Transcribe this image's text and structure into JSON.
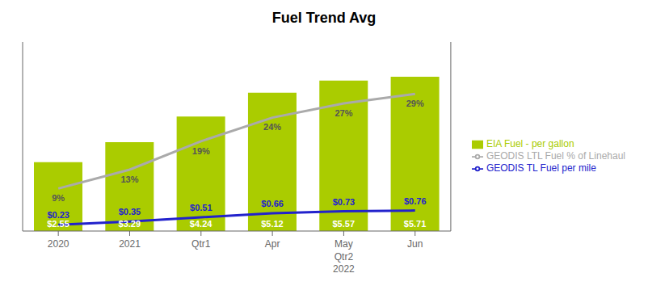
{
  "chart_data": {
    "type": "bar",
    "title": "Fuel Trend Avg",
    "categories": [
      "2020",
      "2021",
      "Qtr1",
      "Apr",
      "May",
      "Jun"
    ],
    "series": [
      {
        "name": "EIA Fuel - per gallon",
        "type": "bar",
        "color": "#aacc00",
        "values": [
          2.55,
          3.29,
          4.24,
          5.12,
          5.57,
          5.71
        ],
        "value_labels": [
          "$2.55",
          "$3.29",
          "$4.24",
          "$5.12",
          "$5.57",
          "$5.71"
        ]
      },
      {
        "name": "GEODIS TL Fuel per mile",
        "type": "line",
        "color": "#2222cc",
        "values": [
          0.23,
          0.35,
          0.51,
          0.66,
          0.73,
          0.76
        ],
        "value_labels": [
          "$0.23",
          "$0.35",
          "$0.51",
          "$0.66",
          "$0.73",
          "$0.76"
        ]
      },
      {
        "name": "GEODIS LTL Fuel % of Linehaul",
        "type": "line",
        "color": "#aaaaaa",
        "axis": "y2",
        "values": [
          9,
          13,
          19,
          24,
          27,
          29
        ],
        "value_labels": [
          "9%",
          "13%",
          "19%",
          "24%",
          "27%",
          "29%"
        ]
      }
    ],
    "annotations": [
      {
        "text": "Qtr2",
        "category": "May"
      },
      {
        "text": "2022",
        "category": "May"
      }
    ],
    "ylim": [
      0,
      7
    ],
    "yticks": [
      0,
      1,
      2,
      3,
      4,
      5,
      6,
      7
    ],
    "y2lim": [
      0,
      40
    ],
    "y2ticks": [
      0,
      10,
      20,
      30,
      40
    ],
    "grid": false,
    "legend": "right",
    "data_labels": true,
    "tick_labels": "x"
  }
}
